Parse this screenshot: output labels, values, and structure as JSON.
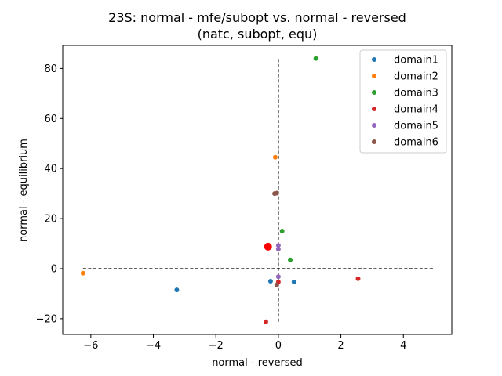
{
  "chart_data": {
    "type": "scatter",
    "title": "23S: normal - mfe/subopt vs. normal - reversed",
    "subtitle": "(natc, subopt, equ)",
    "xlabel": "normal - reversed",
    "ylabel": "normal - equilibrium",
    "xlim": [
      -6.9,
      5.55
    ],
    "ylim": [
      -26.3,
      89.2
    ],
    "xticks": [
      -6,
      -4,
      -2,
      0,
      2,
      4
    ],
    "yticks": [
      -20,
      0,
      20,
      40,
      60,
      80
    ],
    "grid": false,
    "legend_position": "top-right",
    "reference_lines": [
      {
        "orientation": "horizontal",
        "value": 0,
        "from": -6.25,
        "to": 5.0,
        "style": "dashed",
        "color": "#000000"
      },
      {
        "orientation": "vertical",
        "value": 0,
        "from": -21.2,
        "to": 84.0,
        "style": "dashed",
        "color": "#000000"
      }
    ],
    "series": [
      {
        "name": "domain1",
        "color": "#1f77b4",
        "points": [
          [
            -3.25,
            -8.5
          ],
          [
            -0.25,
            -5.0
          ],
          [
            0.5,
            -5.3
          ]
        ]
      },
      {
        "name": "domain2",
        "color": "#ff7f0e",
        "points": [
          [
            -6.25,
            -1.8
          ],
          [
            -0.1,
            44.5
          ]
        ]
      },
      {
        "name": "domain3",
        "color": "#2ca02c",
        "points": [
          [
            1.2,
            84.0
          ],
          [
            0.12,
            15.0
          ],
          [
            0.38,
            3.5
          ]
        ]
      },
      {
        "name": "domain4",
        "color": "#d62728",
        "points": [
          [
            2.55,
            -4.0
          ],
          [
            -0.4,
            -21.2
          ],
          [
            0.0,
            -5.3
          ]
        ]
      },
      {
        "name": "domain5",
        "color": "#9467bd",
        "points": [
          [
            0.0,
            9.3
          ],
          [
            0.0,
            7.8
          ],
          [
            0.0,
            -3.2
          ]
        ]
      },
      {
        "name": "domain6",
        "color": "#8c564b",
        "points": [
          [
            -0.12,
            30.0
          ],
          [
            -0.05,
            30.2
          ],
          [
            -0.05,
            -6.5
          ]
        ]
      }
    ],
    "highlight": {
      "color": "#ff0000",
      "points": [
        [
          -0.33,
          8.8
        ]
      ]
    }
  }
}
